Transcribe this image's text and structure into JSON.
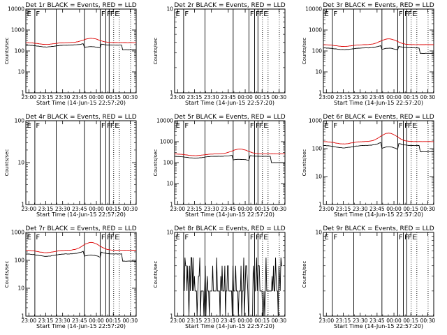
{
  "chart_data": [
    {
      "type": "line",
      "detector": "Det 1r",
      "title": "Det 1r BLACK = Events, RED = LLD",
      "xlabel": "Start Time (14-Jun-15 22:57:20)",
      "ylabel": "Counts/sec",
      "yscale": "log",
      "ylim": [
        1,
        10000
      ],
      "yticks": [
        "1",
        "10",
        "100",
        "1000",
        "10000"
      ],
      "xticks": [
        "23:00",
        "23:15",
        "23:30",
        "23:45",
        "00:00",
        "00:15",
        "00:30"
      ],
      "xlim_minutes": [
        0,
        98
      ],
      "solid_lines": [
        8,
        27,
        52,
        66,
        71,
        74
      ],
      "dotted_lines": [
        78,
        83,
        93
      ],
      "flags": [
        {
          "text": "E",
          "x": 0
        },
        {
          "text": "F",
          "x": 8
        },
        {
          "text": "F",
          "x": 66
        },
        {
          "text": "F",
          "x": 71
        },
        {
          "text": "F",
          "x": 74
        },
        {
          "text": "E",
          "x": 78
        }
      ],
      "series": [
        {
          "name": "LLD",
          "color": "#dd0000",
          "level": 250,
          "bump": 1.6,
          "steps": null,
          "noise": 0.02
        },
        {
          "name": "Events",
          "color": "#000000",
          "level": 190,
          "bump": 1.3,
          "steps": [
            [
              52,
              66,
              0.65
            ],
            [
              86,
              98,
              0.6
            ]
          ],
          "noise": 0.03
        }
      ]
    },
    {
      "type": "line",
      "detector": "Det 2r",
      "title": "Det 2r BLACK = Events, RED = LLD",
      "xlabel": "Start Time (14-Jun-15 22:57:20)",
      "ylabel": "Counts/sec",
      "yscale": "log",
      "ylim": [
        1,
        10
      ],
      "yticks": [
        "1",
        "10"
      ],
      "xticks": [
        "23:00",
        "23:15",
        "23:30",
        "23:45",
        "00:00",
        "00:15",
        "00:30"
      ],
      "xlim_minutes": [
        0,
        98
      ],
      "solid_lines": [
        8,
        27,
        52,
        66,
        71,
        74
      ],
      "dotted_lines": [
        78,
        83,
        93
      ],
      "flags": [
        {
          "text": "E",
          "x": 0
        },
        {
          "text": "F",
          "x": 8
        },
        {
          "text": "F",
          "x": 66
        },
        {
          "text": "F",
          "x": 71
        },
        {
          "text": "F",
          "x": 74
        },
        {
          "text": "E",
          "x": 78
        }
      ],
      "series": []
    },
    {
      "type": "line",
      "detector": "Det 3r",
      "title": "Det 3r BLACK = Events, RED = LLD",
      "xlabel": "Start Time (14-Jun-15 22:57:20)",
      "ylabel": "Counts/sec",
      "yscale": "log",
      "ylim": [
        1,
        10000
      ],
      "yticks": [
        "1",
        "10",
        "100",
        "1000",
        "10000"
      ],
      "xticks": [
        "23:00",
        "23:15",
        "23:30",
        "23:45",
        "00:00",
        "00:15",
        "00:30"
      ],
      "xlim_minutes": [
        0,
        98
      ],
      "solid_lines": [
        8,
        27,
        52,
        66,
        71,
        74
      ],
      "dotted_lines": [
        78,
        83,
        93
      ],
      "flags": [
        {
          "text": "E",
          "x": 0
        },
        {
          "text": "F",
          "x": 8
        },
        {
          "text": "F",
          "x": 66
        },
        {
          "text": "F",
          "x": 71
        },
        {
          "text": "F",
          "x": 74
        },
        {
          "text": "E",
          "x": 78
        }
      ],
      "series": [
        {
          "name": "LLD",
          "color": "#dd0000",
          "level": 200,
          "bump": 1.9,
          "steps": null,
          "noise": 0.02
        },
        {
          "name": "Events",
          "color": "#000000",
          "level": 140,
          "bump": 1.5,
          "steps": [
            [
              52,
              66,
              0.65
            ],
            [
              86,
              98,
              0.55
            ]
          ],
          "noise": 0.03
        }
      ]
    },
    {
      "type": "line",
      "detector": "Det 4r",
      "title": "Det 4r BLACK = Events, RED = LLD",
      "xlabel": "Start Time (14-Jun-15 22:57:20)",
      "ylabel": "Counts/sec",
      "yscale": "log",
      "ylim": [
        1,
        100
      ],
      "yticks": [
        "1",
        "10",
        "100"
      ],
      "xticks": [
        "23:00",
        "23:15",
        "23:30",
        "23:45",
        "00:00",
        "00:15",
        "00:30"
      ],
      "xlim_minutes": [
        0,
        98
      ],
      "solid_lines": [
        8,
        27,
        52,
        66,
        71,
        74
      ],
      "dotted_lines": [
        78,
        83,
        93
      ],
      "flags": [
        {
          "text": "E",
          "x": 0
        },
        {
          "text": "F",
          "x": 8
        },
        {
          "text": "F",
          "x": 66
        },
        {
          "text": "F",
          "x": 71
        },
        {
          "text": "F",
          "x": 74
        },
        {
          "text": "E",
          "x": 78
        }
      ],
      "series": []
    },
    {
      "type": "line",
      "detector": "Det 5r",
      "title": "Det 5r BLACK = Events, RED = LLD",
      "xlabel": "Start Time (14-Jun-15 22:57:20)",
      "ylabel": "Counts/sec",
      "yscale": "log",
      "ylim": [
        1,
        10000
      ],
      "yticks": [
        "1",
        "10",
        "100",
        "1000",
        "10000"
      ],
      "xticks": [
        "23:00",
        "23:15",
        "23:30",
        "23:45",
        "00:00",
        "00:15",
        "00:30"
      ],
      "xlim_minutes": [
        0,
        98
      ],
      "solid_lines": [
        8,
        27,
        52,
        66,
        71,
        74
      ],
      "dotted_lines": [
        78,
        83,
        93
      ],
      "flags": [
        {
          "text": "E",
          "x": 0
        },
        {
          "text": "F",
          "x": 8
        },
        {
          "text": "F",
          "x": 66
        },
        {
          "text": "F",
          "x": 71
        },
        {
          "text": "F",
          "x": 74
        },
        {
          "text": "E",
          "x": 78
        }
      ],
      "series": [
        {
          "name": "LLD",
          "color": "#dd0000",
          "level": 260,
          "bump": 1.7,
          "steps": null,
          "noise": 0.02
        },
        {
          "name": "Events",
          "color": "#000000",
          "level": 200,
          "bump": 1.2,
          "steps": [
            [
              52,
              66,
              0.6
            ],
            [
              86,
              98,
              0.5
            ]
          ],
          "noise": 0.03
        }
      ]
    },
    {
      "type": "line",
      "detector": "Det 6r",
      "title": "Det 6r BLACK = Events, RED = LLD",
      "xlabel": "Start Time (14-Jun-15 22:57:20)",
      "ylabel": "Counts/sec",
      "yscale": "log",
      "ylim": [
        1,
        1000
      ],
      "yticks": [
        "1",
        "10",
        "100",
        "1000"
      ],
      "xticks": [
        "23:00",
        "23:15",
        "23:30",
        "23:45",
        "00:00",
        "00:15",
        "00:30"
      ],
      "xlim_minutes": [
        0,
        98
      ],
      "solid_lines": [
        8,
        27,
        52,
        66,
        71,
        74
      ],
      "dotted_lines": [
        78,
        83,
        93
      ],
      "flags": [
        {
          "text": "E",
          "x": 0
        },
        {
          "text": "F",
          "x": 8
        },
        {
          "text": "F",
          "x": 66
        },
        {
          "text": "F",
          "x": 71
        },
        {
          "text": "F",
          "x": 74
        },
        {
          "text": "E",
          "x": 78
        }
      ],
      "series": [
        {
          "name": "LLD",
          "color": "#dd0000",
          "level": 180,
          "bump": 2.0,
          "steps": null,
          "noise": 0.02
        },
        {
          "name": "Events",
          "color": "#000000",
          "level": 130,
          "bump": 1.5,
          "steps": [
            [
              52,
              66,
              0.6
            ],
            [
              86,
              98,
              0.6
            ]
          ],
          "noise": 0.03
        }
      ]
    },
    {
      "type": "line",
      "detector": "Det 7r",
      "title": "Det 7r BLACK = Events, RED = LLD",
      "xlabel": "Start Time (14-Jun-15 22:57:20)",
      "ylabel": "Counts/sec",
      "yscale": "log",
      "ylim": [
        1,
        1000
      ],
      "yticks": [
        "1",
        "10",
        "100",
        "1000"
      ],
      "xticks": [
        "23:00",
        "23:15",
        "23:30",
        "23:45",
        "00:00",
        "00:15",
        "00:30"
      ],
      "xlim_minutes": [
        0,
        98
      ],
      "solid_lines": [
        8,
        27,
        52,
        66,
        71,
        74
      ],
      "dotted_lines": [
        78,
        83,
        93
      ],
      "flags": [
        {
          "text": "E",
          "x": 0
        },
        {
          "text": "F",
          "x": 8
        },
        {
          "text": "F",
          "x": 66
        },
        {
          "text": "F",
          "x": 71
        },
        {
          "text": "F",
          "x": 74
        },
        {
          "text": "E",
          "x": 78
        }
      ],
      "series": [
        {
          "name": "LLD",
          "color": "#dd0000",
          "level": 230,
          "bump": 1.9,
          "steps": null,
          "noise": 0.02
        },
        {
          "name": "Events",
          "color": "#000000",
          "level": 170,
          "bump": 1.4,
          "steps": [
            [
              52,
              66,
              0.65
            ],
            [
              86,
              98,
              0.55
            ]
          ],
          "noise": 0.03
        }
      ]
    },
    {
      "type": "line",
      "detector": "Det 8r",
      "title": "Det 8r BLACK = Events, RED = LLD",
      "xlabel": "Start Time (14-Jun-15 22:57:20)",
      "ylabel": "Counts/sec",
      "yscale": "log",
      "ylim": [
        1,
        10
      ],
      "yticks": [
        "1",
        "10"
      ],
      "xticks": [
        "23:00",
        "23:15",
        "23:30",
        "23:45",
        "00:00",
        "00:15",
        "00:30"
      ],
      "xlim_minutes": [
        0,
        98
      ],
      "solid_lines": [
        8,
        27,
        52,
        66,
        71,
        74
      ],
      "dotted_lines": [
        78,
        83,
        93
      ],
      "flags": [
        {
          "text": "E",
          "x": 0
        },
        {
          "text": "F",
          "x": 8
        },
        {
          "text": "F",
          "x": 66
        },
        {
          "text": "F",
          "x": 71
        },
        {
          "text": "F",
          "x": 74
        },
        {
          "text": "E",
          "x": 78
        }
      ],
      "series": [
        {
          "name": "Events",
          "color": "#000000",
          "kind": "spiky",
          "base": 2,
          "peak": 5,
          "steps": null
        }
      ]
    },
    {
      "type": "line",
      "detector": "Det 9r",
      "title": "Det 9r BLACK = Events, RED = LLD",
      "xlabel": "Start Time (14-Jun-15 22:57:20)",
      "ylabel": "Counts/sec",
      "yscale": "log",
      "ylim": [
        1,
        10
      ],
      "yticks": [
        "1",
        "10"
      ],
      "xticks": [
        "23:00",
        "23:15",
        "23:30",
        "23:45",
        "00:00",
        "00:15",
        "00:30"
      ],
      "xlim_minutes": [
        0,
        98
      ],
      "solid_lines": [
        8,
        27,
        52,
        66,
        71,
        74
      ],
      "dotted_lines": [
        78,
        83,
        93
      ],
      "flags": [
        {
          "text": "E",
          "x": 0
        },
        {
          "text": "F",
          "x": 8
        },
        {
          "text": "F",
          "x": 66
        },
        {
          "text": "F",
          "x": 71
        },
        {
          "text": "F",
          "x": 74
        },
        {
          "text": "E",
          "x": 78
        }
      ],
      "series": []
    }
  ]
}
